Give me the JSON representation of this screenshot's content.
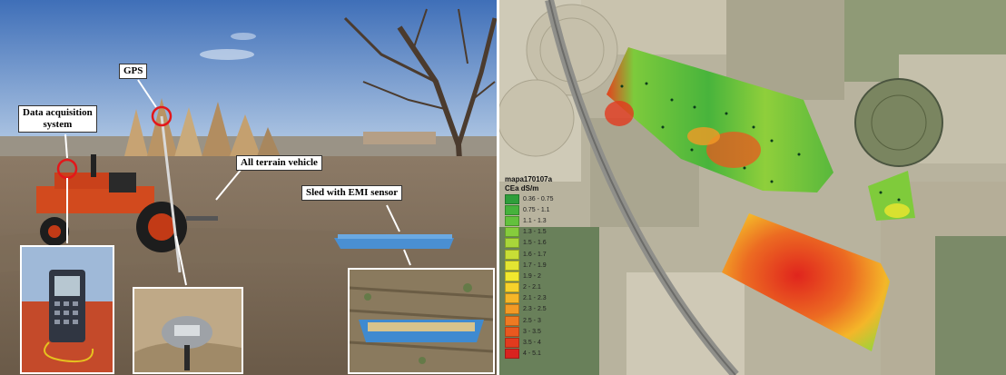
{
  "photo": {
    "labels": {
      "gps": "GPS",
      "data_acquisition": "Data acquisition\nsystem",
      "vehicle": "All terrain vehicle",
      "sled": "Sled  with  EMI  sensor"
    }
  },
  "map": {
    "legend_title": "mapa170107a",
    "legend_units": "CEa dS/m",
    "legend": [
      {
        "label": "0.36 - 0.75",
        "color": "#2e9e3a"
      },
      {
        "label": "0.75 - 1.1",
        "color": "#46b23c"
      },
      {
        "label": "1.1 - 1.3",
        "color": "#63c13d"
      },
      {
        "label": "1.3 - 1.5",
        "color": "#86cc3c"
      },
      {
        "label": "1.5 - 1.6",
        "color": "#a9d63a"
      },
      {
        "label": "1.6 - 1.7",
        "color": "#c8de36"
      },
      {
        "label": "1.7 - 1.9",
        "color": "#e3e532"
      },
      {
        "label": "1.9 - 2",
        "color": "#f1e82e"
      },
      {
        "label": "2 - 2.1",
        "color": "#f6d22b"
      },
      {
        "label": "2.1 - 2.3",
        "color": "#f5b628"
      },
      {
        "label": "2.3 - 2.5",
        "color": "#f29a25"
      },
      {
        "label": "2.5 - 3",
        "color": "#ee7a22"
      },
      {
        "label": "3 - 3.5",
        "color": "#e9581f"
      },
      {
        "label": "3.5 - 4",
        "color": "#e23a1e"
      },
      {
        "label": "4 - 5.1",
        "color": "#d9231f"
      }
    ]
  }
}
